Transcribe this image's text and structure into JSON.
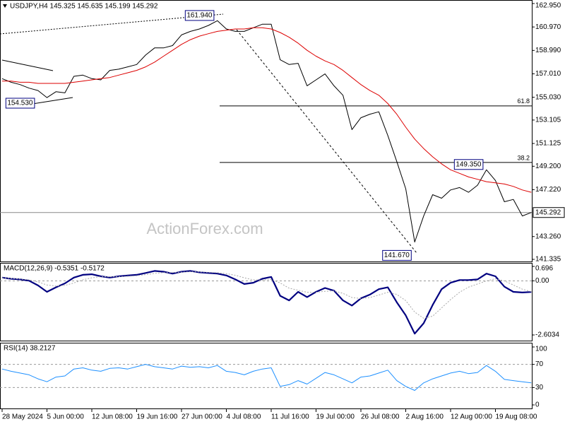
{
  "chart_data": [
    {
      "type": "line",
      "title": "USDJPY,H4 145.325 145.635 145.199 145.292",
      "categories": [
        "28 May 2024",
        null,
        null,
        null,
        null,
        "5 Jun 00:00",
        null,
        null,
        null,
        null,
        "12 Jun 08:00",
        null,
        null,
        null,
        null,
        "19 Jun 16:00",
        null,
        null,
        null,
        null,
        "27 Jun 00:00",
        null,
        null,
        null,
        null,
        "4 Jul 08:00",
        null,
        null,
        null,
        null,
        "11 Jul 16:00",
        null,
        null,
        null,
        null,
        "19 Jul 00:00",
        null,
        null,
        null,
        null,
        "26 Jul 08:00",
        null,
        null,
        null,
        null,
        "2 Aug 16:00",
        null,
        null,
        null,
        null,
        "12 Aug 00:00",
        null,
        null,
        null,
        null,
        "19 Aug 08:00",
        null,
        null,
        null,
        null
      ],
      "series": [
        {
          "color": "#000000",
          "values": [
            156.6,
            156.3,
            156.1,
            155.8,
            155.6,
            155.0,
            155.5,
            155.4,
            156.8,
            156.9,
            156.6,
            156.5,
            157.3,
            157.4,
            157.6,
            157.8,
            158.6,
            159.2,
            159.2,
            159.4,
            160.3,
            160.6,
            160.8,
            161.1,
            161.5,
            160.8,
            160.6,
            160.6,
            160.9,
            161.2,
            161.2,
            158.2,
            157.8,
            157.9,
            156.0,
            156.5,
            157.0,
            156.0,
            155.2,
            152.3,
            153.3,
            153.6,
            153.8,
            151.8,
            149.6,
            147.3,
            142.8,
            145.0,
            146.8,
            146.5,
            147.2,
            147.4,
            147.0,
            147.6,
            148.9,
            148.0,
            146.2,
            146.4,
            145.0,
            145.292
          ]
        },
        {
          "color": "#dd0000",
          "values": [
            156.4,
            156.4,
            156.3,
            156.3,
            156.2,
            156.2,
            156.2,
            156.2,
            156.3,
            156.4,
            156.5,
            156.6,
            156.7,
            156.9,
            157.1,
            157.3,
            157.6,
            158.0,
            158.5,
            159.0,
            159.5,
            159.9,
            160.2,
            160.4,
            160.6,
            160.7,
            160.8,
            160.8,
            160.9,
            160.9,
            160.8,
            160.5,
            160.1,
            159.6,
            159.0,
            158.5,
            158.1,
            157.8,
            157.3,
            156.7,
            156.1,
            155.6,
            155.2,
            154.5,
            153.6,
            152.5,
            151.5,
            150.7,
            150.0,
            149.4,
            148.9,
            148.6,
            148.3,
            148.1,
            147.9,
            147.8,
            147.7,
            147.5,
            147.2,
            147.0
          ]
        }
      ],
      "ylim": [
        141.335,
        162.95
      ],
      "yticks": [
        {
          "value": 162.95,
          "label": "162.950"
        },
        {
          "value": 160.97,
          "label": "160.970"
        },
        {
          "value": 158.99,
          "label": "158.990"
        },
        {
          "value": 157.01,
          "label": "157.010"
        },
        {
          "value": 155.03,
          "label": "155.030"
        },
        153.105,
        151.125,
        {
          "value": 149.2,
          "label": "149.200"
        },
        {
          "value": 147.22,
          "label": "147.220"
        },
        {
          "value": 143.26,
          "label": "143.260"
        },
        141.335
      ],
      "grid": false,
      "watermark": "ActionForex.com",
      "last_price": 145.292,
      "levels": [
        {
          "label": "61.8",
          "value": 154.3
        },
        {
          "label": "38.2",
          "value": 149.52
        }
      ],
      "price_labels": [
        {
          "index": 22,
          "value": 161.94,
          "label": "161.940"
        },
        {
          "index": 2,
          "value": 154.53,
          "label": "154.530"
        },
        {
          "index": 52,
          "value": 149.35,
          "label": "149.350"
        },
        {
          "index": 44,
          "value": 141.67,
          "label": "141.670"
        }
      ]
    },
    {
      "type": "line",
      "title": "MACD(12,26,9) -0.5351 -0.5172",
      "series": [
        {
          "color": "#000080",
          "values": [
            0.16,
            0.1,
            0.07,
            0.01,
            -0.22,
            -0.53,
            -0.31,
            -0.12,
            0.16,
            0.29,
            0.32,
            0.22,
            0.16,
            0.22,
            0.26,
            0.29,
            0.38,
            0.48,
            0.44,
            0.35,
            0.44,
            0.48,
            0.41,
            0.38,
            0.35,
            0.26,
            0.07,
            -0.15,
            -0.09,
            0.1,
            0.19,
            -0.72,
            -0.94,
            -0.53,
            -0.78,
            -0.53,
            -0.34,
            -0.47,
            -0.94,
            -1.19,
            -0.84,
            -0.66,
            -0.4,
            -0.31,
            -1.03,
            -1.66,
            -2.54,
            -2.04,
            -1.16,
            -0.4,
            -0.09,
            0.04,
            0.04,
            0.07,
            0.35,
            0.22,
            -0.28,
            -0.53,
            -0.56,
            -0.5351
          ]
        },
        {
          "color": "#a8a8a8",
          "dashed": true,
          "values": [
            0.15,
            0.12,
            0.09,
            0.05,
            -0.05,
            -0.2,
            -0.25,
            -0.22,
            -0.1,
            0.05,
            0.15,
            0.2,
            0.2,
            0.2,
            0.22,
            0.25,
            0.3,
            0.36,
            0.4,
            0.4,
            0.42,
            0.44,
            0.43,
            0.41,
            0.39,
            0.35,
            0.27,
            0.15,
            0.05,
            0.04,
            0.07,
            -0.1,
            -0.35,
            -0.45,
            -0.55,
            -0.55,
            -0.5,
            -0.48,
            -0.6,
            -0.8,
            -0.85,
            -0.8,
            -0.68,
            -0.55,
            -0.65,
            -0.95,
            -1.5,
            -1.8,
            -1.7,
            -1.3,
            -0.9,
            -0.55,
            -0.3,
            -0.15,
            0.0,
            0.1,
            0.0,
            -0.2,
            -0.4,
            -0.5172
          ]
        }
      ],
      "ylim": [
        -2.6034,
        0.696
      ],
      "yticks": [
        0.696,
        {
          "value": 0,
          "label": "0.00"
        },
        -2.6034
      ],
      "grid": true
    },
    {
      "type": "line",
      "title": "RSI(14) 38.2127",
      "series": [
        {
          "color": "#1e90ff",
          "values": [
            62,
            58,
            55,
            52,
            45,
            40,
            48,
            50,
            62,
            64,
            60,
            58,
            63,
            64,
            62,
            66,
            70,
            66,
            64,
            62,
            67,
            65,
            66,
            64,
            68,
            58,
            56,
            52,
            58,
            62,
            64,
            32,
            35,
            42,
            36,
            46,
            56,
            52,
            45,
            38,
            48,
            50,
            55,
            60,
            42,
            32,
            25,
            38,
            45,
            50,
            55,
            58,
            54,
            56,
            68,
            58,
            44,
            42,
            40,
            38.2127
          ]
        }
      ],
      "ylim": [
        0,
        100
      ],
      "yticks": [
        100,
        70,
        30,
        0
      ],
      "grid": true
    }
  ]
}
